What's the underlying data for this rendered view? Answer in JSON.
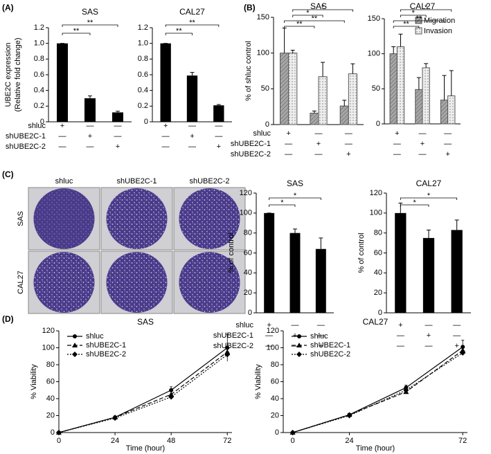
{
  "plates": {
    "panel": "(C)",
    "columns": [
      "shluc",
      "shUBE2C-1",
      "shUBE2C-2"
    ],
    "rows": [
      "SAS",
      "CAL27"
    ]
  },
  "chart_data": [
    {
      "type": "bar",
      "panel": "(A)",
      "title": "SAS",
      "ylabel": [
        "UBE2C expression",
        "(Relative fold change)"
      ],
      "values": [
        1,
        0.3,
        0.12
      ],
      "errors": [
        0,
        0.03,
        0.015
      ],
      "color": "#000000",
      "ylim": [
        0,
        1.2
      ],
      "yticks": [
        0,
        0.2,
        0.4,
        0.6,
        0.8,
        {
          "value": 1,
          "label": "1.0"
        },
        1.2
      ],
      "annotations": [
        "**",
        "**"
      ],
      "condition_names": [
        "shluc",
        "shUBE2C-1",
        "shUBE2C-2"
      ],
      "conditions": [
        [
          "+",
          "—",
          "—"
        ],
        [
          "—",
          "+",
          "—"
        ],
        [
          "—",
          "—",
          "+"
        ]
      ]
    },
    {
      "type": "bar",
      "title": "CAL27",
      "values": [
        1,
        0.59,
        0.21
      ],
      "errors": [
        0,
        0.04,
        0.01
      ],
      "color": "#000000",
      "ylim": [
        0,
        1.2
      ],
      "yticks": [
        0,
        0.2,
        0.4,
        0.6,
        0.8,
        {
          "value": 1,
          "label": "1.0"
        },
        1.2
      ],
      "annotations": [
        "**",
        "**"
      ],
      "conditions": [
        [
          "+",
          "—",
          "—"
        ],
        [
          "—",
          "+",
          "—"
        ],
        [
          "—",
          "—",
          "+"
        ]
      ]
    },
    {
      "type": "bar",
      "panel": "(B)",
      "title": "SAS",
      "ylabel": "% of shluc control",
      "series": [
        {
          "color": "#a6a6a6",
          "pattern": "hatch",
          "values": [
            100,
            16,
            26
          ],
          "errors": [
            35,
            3,
            8
          ]
        },
        {
          "color": "#eeeeee",
          "pattern": "dots",
          "values": [
            100,
            67,
            71
          ],
          "errors": [
            4,
            20,
            14
          ]
        }
      ],
      "ylim": [
        0,
        150
      ],
      "yticks": [
        0,
        50,
        100,
        150
      ],
      "annotations": [
        "**",
        "**",
        "*",
        "*"
      ],
      "condition_names": [
        "shluc",
        "shUBE2C-1",
        "shUBE2C-2"
      ],
      "conditions": [
        [
          "+",
          "—",
          "—"
        ],
        [
          "—",
          "+",
          "—"
        ],
        [
          "—",
          "—",
          "+"
        ]
      ]
    },
    {
      "type": "bar",
      "title": "CAL27",
      "legend": "upper right",
      "series": [
        {
          "name": "Migration",
          "color": "#a6a6a6",
          "pattern": "hatch",
          "values": [
            100,
            49,
            34
          ],
          "errors": [
            10,
            17,
            35
          ]
        },
        {
          "name": "Invasion",
          "color": "#eeeeee",
          "pattern": "dots",
          "values": [
            110,
            80,
            40
          ],
          "errors": [
            18,
            6,
            36
          ]
        }
      ],
      "ylim": [
        0,
        150
      ],
      "yticks": [
        0,
        50,
        100,
        150
      ],
      "annotations": [
        "**",
        "**",
        "*",
        "*"
      ],
      "conditions": [
        [
          "+",
          "—",
          "—"
        ],
        [
          "—",
          "+",
          "—"
        ],
        [
          "—",
          "—",
          "+"
        ]
      ]
    },
    {
      "type": "bar",
      "title": "SAS",
      "ylabel": "% of control",
      "values": [
        100,
        80,
        64
      ],
      "errors": [
        0,
        4,
        11
      ],
      "color": "#000000",
      "ylim": [
        0,
        120
      ],
      "yticks": [
        0,
        20,
        40,
        60,
        80,
        100,
        120
      ],
      "annotations": [
        "*",
        "*"
      ],
      "condition_names": [
        "shluc",
        "shUBE2C-1",
        "shUBE2C-2"
      ],
      "conditions": [
        [
          "+",
          "—",
          "—"
        ],
        [
          "—",
          "+",
          "—"
        ],
        [
          "—",
          "—",
          "+"
        ]
      ]
    },
    {
      "type": "bar",
      "title": "CAL27",
      "ylabel": "% of control",
      "values": [
        100,
        75,
        83
      ],
      "errors": [
        10,
        8,
        10
      ],
      "color": "#000000",
      "ylim": [
        0,
        120
      ],
      "yticks": [
        0,
        20,
        40,
        60,
        80,
        100,
        120
      ],
      "annotations": [
        "*",
        "*"
      ],
      "conditions": [
        [
          "+",
          "—",
          "—"
        ],
        [
          "—",
          "+",
          "—"
        ],
        [
          "—",
          "—",
          "+"
        ]
      ]
    },
    {
      "type": "line",
      "panel": "(D)",
      "title": "SAS",
      "xlabel": "Time (hour)",
      "ylabel": "% Viability",
      "legend": "upper left",
      "x": [
        0,
        24,
        48,
        72
      ],
      "xlim": [
        0,
        74
      ],
      "xticks": [
        0,
        24,
        48,
        72
      ],
      "ylim": [
        0,
        120
      ],
      "yticks": [
        0,
        20,
        40,
        60,
        80,
        100,
        120
      ],
      "series": [
        {
          "name": "shluc",
          "color": "#000000",
          "style": "solid",
          "marker": "circle",
          "values": [
            0,
            18,
            50,
            100
          ],
          "errors": [
            0,
            1,
            4,
            16
          ]
        },
        {
          "name": "shUBE2C-1",
          "color": "#000000",
          "style": "dashed",
          "marker": "triangle",
          "values": [
            0,
            18,
            45,
            95
          ]
        },
        {
          "name": "shUBE2C-2",
          "color": "#000000",
          "style": "dotted",
          "marker": "diamond",
          "values": [
            0,
            17,
            42,
            92
          ]
        }
      ]
    },
    {
      "type": "line",
      "title": "CAL27",
      "xlabel": "Time (hour)",
      "ylabel": "% Viability",
      "legend": "upper left",
      "x": [
        0,
        24,
        48,
        72
      ],
      "xlim": [
        -4,
        74
      ],
      "xticks": [
        0,
        24,
        72
      ],
      "ylim": [
        0,
        120
      ],
      "yticks": [
        0,
        20,
        40,
        60,
        80,
        100,
        120
      ],
      "series": [
        {
          "name": "shluc",
          "color": "#000000",
          "style": "solid",
          "marker": "circle",
          "values": [
            0,
            21,
            53,
            101
          ],
          "errors": [
            0,
            1,
            3,
            8
          ]
        },
        {
          "name": "shUBE2C-1",
          "color": "#000000",
          "style": "dashed",
          "marker": "triangle",
          "values": [
            0,
            21,
            48,
            97
          ]
        },
        {
          "name": "shUBE2C-2",
          "color": "#000000",
          "style": "dotted",
          "marker": "diamond",
          "values": [
            0,
            20,
            50,
            94
          ]
        }
      ]
    }
  ]
}
